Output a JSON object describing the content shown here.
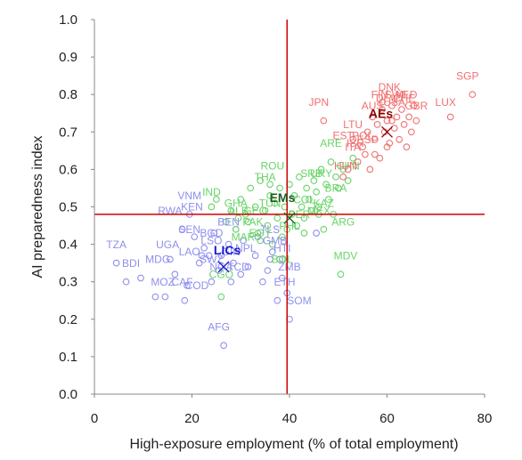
{
  "chart_data": {
    "type": "scatter",
    "title": "",
    "xlabel": "High-exposure employment (% of total employment)",
    "ylabel": "AI preparedness index",
    "xlim": [
      0,
      80
    ],
    "ylim": [
      0,
      1.0
    ],
    "x_ticks": [
      "0",
      "20",
      "40",
      "60",
      "80"
    ],
    "y_ticks": [
      "0.0",
      "0.1",
      "0.2",
      "0.3",
      "0.4",
      "0.5",
      "0.6",
      "0.7",
      "0.8",
      "0.9",
      "1.0"
    ],
    "grid": false,
    "reference_lines": {
      "x": 39.5,
      "y": 0.48,
      "color": "#d00000"
    },
    "series": [
      {
        "group": "LICs",
        "color": "#8f8fee",
        "label_color": "#1a1acc",
        "centroid": {
          "x": 26.5,
          "y": 0.34
        },
        "points": [
          {
            "x": 4.5,
            "y": 0.35
          },
          {
            "x": 6.5,
            "y": 0.3
          },
          {
            "x": 9.5,
            "y": 0.31
          },
          {
            "x": 12.5,
            "y": 0.26
          },
          {
            "x": 14.5,
            "y": 0.26
          },
          {
            "x": 15.5,
            "y": 0.36
          },
          {
            "x": 16.5,
            "y": 0.32
          },
          {
            "x": 18.5,
            "y": 0.25
          },
          {
            "x": 18,
            "y": 0.44
          },
          {
            "x": 19.5,
            "y": 0.48
          },
          {
            "x": 20.5,
            "y": 0.42
          },
          {
            "x": 21.5,
            "y": 0.35
          },
          {
            "x": 22.5,
            "y": 0.39
          },
          {
            "x": 23.5,
            "y": 0.37
          },
          {
            "x": 24,
            "y": 0.3
          },
          {
            "x": 25.5,
            "y": 0.33
          },
          {
            "x": 26,
            "y": 0.37
          },
          {
            "x": 26.5,
            "y": 0.13
          },
          {
            "x": 27.5,
            "y": 0.4
          },
          {
            "x": 28.5,
            "y": 0.35
          },
          {
            "x": 29,
            "y": 0.44
          },
          {
            "x": 30.5,
            "y": 0.41
          },
          {
            "x": 31.5,
            "y": 0.34
          },
          {
            "x": 33,
            "y": 0.37
          },
          {
            "x": 34.5,
            "y": 0.3
          },
          {
            "x": 35.5,
            "y": 0.33
          },
          {
            "x": 36.5,
            "y": 0.38
          },
          {
            "x": 37.5,
            "y": 0.25
          },
          {
            "x": 38.5,
            "y": 0.31
          },
          {
            "x": 39.5,
            "y": 0.27
          },
          {
            "x": 40,
            "y": 0.2
          },
          {
            "x": 38,
            "y": 0.36
          },
          {
            "x": 36,
            "y": 0.36
          },
          {
            "x": 45.5,
            "y": 0.43
          },
          {
            "x": 30,
            "y": 0.32
          },
          {
            "x": 24.5,
            "y": 0.43
          },
          {
            "x": 22,
            "y": 0.37
          },
          {
            "x": 28,
            "y": 0.3
          },
          {
            "x": 33.5,
            "y": 0.42
          },
          {
            "x": 19,
            "y": 0.29
          }
        ],
        "labels": [
          {
            "text": "TZA",
            "x": 4.5,
            "y": 0.39
          },
          {
            "text": "BDI",
            "x": 7.5,
            "y": 0.34
          },
          {
            "text": "MDG",
            "x": 13,
            "y": 0.35
          },
          {
            "text": "MOZ",
            "x": 14,
            "y": 0.29
          },
          {
            "text": "CAF",
            "x": 18,
            "y": 0.29
          },
          {
            "text": "COD",
            "x": 21,
            "y": 0.28
          },
          {
            "text": "UGA",
            "x": 15,
            "y": 0.39
          },
          {
            "text": "SEN",
            "x": 19.5,
            "y": 0.43
          },
          {
            "text": "RWA",
            "x": 15.5,
            "y": 0.48
          },
          {
            "text": "KEN",
            "x": 20,
            "y": 0.49
          },
          {
            "text": "VNM",
            "x": 19.5,
            "y": 0.52
          },
          {
            "text": "LAO",
            "x": 19.5,
            "y": 0.37
          },
          {
            "text": "BGD",
            "x": 24,
            "y": 0.42
          },
          {
            "text": "LSO",
            "x": 24,
            "y": 0.4
          },
          {
            "text": "GIN",
            "x": 28,
            "y": 0.37
          },
          {
            "text": "SWZ",
            "x": 24,
            "y": 0.35
          },
          {
            "text": "NGA",
            "x": 26,
            "y": 0.33
          },
          {
            "text": "AFG",
            "x": 25.5,
            "y": 0.17
          },
          {
            "text": "SOM",
            "x": 42,
            "y": 0.24
          },
          {
            "text": "ETH",
            "x": 39,
            "y": 0.29
          },
          {
            "text": "ZMB",
            "x": 40,
            "y": 0.33
          },
          {
            "text": "HTI",
            "x": 38.5,
            "y": 0.38
          },
          {
            "text": "GMB",
            "x": 37,
            "y": 0.4
          },
          {
            "text": "TLS",
            "x": 36,
            "y": 0.43
          },
          {
            "text": "NPL",
            "x": 31,
            "y": 0.38
          },
          {
            "text": "BEN",
            "x": 27.5,
            "y": 0.45
          },
          {
            "text": "TCD",
            "x": 29.5,
            "y": 0.33
          }
        ]
      },
      {
        "group": "EMs",
        "color": "#68d468",
        "label_color": "#1e5e1e",
        "centroid": {
          "x": 40,
          "y": 0.47
        },
        "points": [
          {
            "x": 24,
            "y": 0.5
          },
          {
            "x": 25,
            "y": 0.52
          },
          {
            "x": 26,
            "y": 0.26
          },
          {
            "x": 27,
            "y": 0.46
          },
          {
            "x": 28,
            "y": 0.49
          },
          {
            "x": 29,
            "y": 0.44
          },
          {
            "x": 30,
            "y": 0.52
          },
          {
            "x": 31,
            "y": 0.48
          },
          {
            "x": 31.5,
            "y": 0.46
          },
          {
            "x": 32,
            "y": 0.55
          },
          {
            "x": 33,
            "y": 0.5
          },
          {
            "x": 33.5,
            "y": 0.43
          },
          {
            "x": 34,
            "y": 0.57
          },
          {
            "x": 35,
            "y": 0.49
          },
          {
            "x": 35.5,
            "y": 0.45
          },
          {
            "x": 36,
            "y": 0.53
          },
          {
            "x": 36.5,
            "y": 0.4
          },
          {
            "x": 37,
            "y": 0.51
          },
          {
            "x": 37.5,
            "y": 0.47
          },
          {
            "x": 38,
            "y": 0.55
          },
          {
            "x": 38.5,
            "y": 0.42
          },
          {
            "x": 39,
            "y": 0.5
          },
          {
            "x": 39.5,
            "y": 0.44
          },
          {
            "x": 40,
            "y": 0.56
          },
          {
            "x": 40.5,
            "y": 0.48
          },
          {
            "x": 41,
            "y": 0.53
          },
          {
            "x": 41.5,
            "y": 0.45
          },
          {
            "x": 42,
            "y": 0.58
          },
          {
            "x": 42.5,
            "y": 0.5
          },
          {
            "x": 43,
            "y": 0.47
          },
          {
            "x": 43.5,
            "y": 0.55
          },
          {
            "x": 44,
            "y": 0.52
          },
          {
            "x": 44.5,
            "y": 0.49
          },
          {
            "x": 45,
            "y": 0.57
          },
          {
            "x": 45.5,
            "y": 0.54
          },
          {
            "x": 46,
            "y": 0.5
          },
          {
            "x": 46.5,
            "y": 0.6
          },
          {
            "x": 47,
            "y": 0.44
          },
          {
            "x": 47.5,
            "y": 0.56
          },
          {
            "x": 48,
            "y": 0.52
          },
          {
            "x": 48.5,
            "y": 0.62
          },
          {
            "x": 49,
            "y": 0.48
          },
          {
            "x": 49.5,
            "y": 0.58
          },
          {
            "x": 50,
            "y": 0.55
          },
          {
            "x": 50.5,
            "y": 0.32
          },
          {
            "x": 51,
            "y": 0.6
          },
          {
            "x": 52,
            "y": 0.57
          },
          {
            "x": 53,
            "y": 0.63
          },
          {
            "x": 34,
            "y": 0.41
          },
          {
            "x": 29.5,
            "y": 0.47
          },
          {
            "x": 38.5,
            "y": 0.36
          },
          {
            "x": 43,
            "y": 0.43
          },
          {
            "x": 46,
            "y": 0.48
          },
          {
            "x": 36,
            "y": 0.56
          }
        ],
        "labels": [
          {
            "text": "IND",
            "x": 24,
            "y": 0.53
          },
          {
            "text": "ALB",
            "x": 29.5,
            "y": 0.48
          },
          {
            "text": "GEO",
            "x": 33,
            "y": 0.48
          },
          {
            "text": "ROU",
            "x": 36.5,
            "y": 0.6
          },
          {
            "text": "THA",
            "x": 35,
            "y": 0.57
          },
          {
            "text": "PAK",
            "x": 32.5,
            "y": 0.45
          },
          {
            "text": "ARE",
            "x": 48.5,
            "y": 0.66
          },
          {
            "text": "CHN",
            "x": 52,
            "y": 0.6
          },
          {
            "text": "URY",
            "x": 46.5,
            "y": 0.58
          },
          {
            "text": "BRA",
            "x": 49.5,
            "y": 0.54
          },
          {
            "text": "ARG",
            "x": 51,
            "y": 0.45
          },
          {
            "text": "MEX",
            "x": 46,
            "y": 0.48
          },
          {
            "text": "MDV",
            "x": 51.5,
            "y": 0.36
          },
          {
            "text": "PHL",
            "x": 40,
            "y": 0.44
          },
          {
            "text": "KAZ",
            "x": 47,
            "y": 0.5
          },
          {
            "text": "COL",
            "x": 43,
            "y": 0.51
          },
          {
            "text": "TUN",
            "x": 36,
            "y": 0.5
          },
          {
            "text": "EGY",
            "x": 34,
            "y": 0.42
          },
          {
            "text": "MAR",
            "x": 30.5,
            "y": 0.41
          },
          {
            "text": "BOL",
            "x": 38.5,
            "y": 0.35
          },
          {
            "text": "CGO",
            "x": 26,
            "y": 0.31
          },
          {
            "text": "GHA",
            "x": 29,
            "y": 0.5
          },
          {
            "text": "PER",
            "x": 42,
            "y": 0.47
          },
          {
            "text": "SRB",
            "x": 44.5,
            "y": 0.58
          }
        ]
      },
      {
        "group": "AEs",
        "color": "#f07070",
        "label_color": "#8b0000",
        "centroid": {
          "x": 60,
          "y": 0.7
        },
        "points": [
          {
            "x": 47,
            "y": 0.73
          },
          {
            "x": 51,
            "y": 0.58
          },
          {
            "x": 52,
            "y": 0.6
          },
          {
            "x": 53,
            "y": 0.68
          },
          {
            "x": 54,
            "y": 0.62
          },
          {
            "x": 55,
            "y": 0.66
          },
          {
            "x": 55.5,
            "y": 0.64
          },
          {
            "x": 56,
            "y": 0.7
          },
          {
            "x": 56.5,
            "y": 0.6
          },
          {
            "x": 57,
            "y": 0.74
          },
          {
            "x": 57.5,
            "y": 0.68
          },
          {
            "x": 58,
            "y": 0.72
          },
          {
            "x": 58.5,
            "y": 0.63
          },
          {
            "x": 59,
            "y": 0.76
          },
          {
            "x": 59.5,
            "y": 0.7
          },
          {
            "x": 60,
            "y": 0.73
          },
          {
            "x": 60.5,
            "y": 0.67
          },
          {
            "x": 61,
            "y": 0.77
          },
          {
            "x": 61.5,
            "y": 0.71
          },
          {
            "x": 62,
            "y": 0.74
          },
          {
            "x": 62.5,
            "y": 0.68
          },
          {
            "x": 63,
            "y": 0.76
          },
          {
            "x": 63.5,
            "y": 0.72
          },
          {
            "x": 64,
            "y": 0.66
          },
          {
            "x": 64.5,
            "y": 0.74
          },
          {
            "x": 65,
            "y": 0.7
          },
          {
            "x": 65.5,
            "y": 0.77
          },
          {
            "x": 66,
            "y": 0.73
          },
          {
            "x": 73,
            "y": 0.74
          },
          {
            "x": 77.5,
            "y": 0.8
          },
          {
            "x": 57.5,
            "y": 0.64
          },
          {
            "x": 60,
            "y": 0.66
          },
          {
            "x": 61,
            "y": 0.73
          },
          {
            "x": 59,
            "y": 0.78
          }
        ],
        "labels": [
          {
            "text": "SGP",
            "x": 76.5,
            "y": 0.84
          },
          {
            "text": "LUX",
            "x": 72,
            "y": 0.77
          },
          {
            "text": "JPN",
            "x": 46,
            "y": 0.77
          },
          {
            "text": "DNK",
            "x": 60.5,
            "y": 0.81
          },
          {
            "text": "FIN",
            "x": 58.5,
            "y": 0.79
          },
          {
            "text": "SWE",
            "x": 62,
            "y": 0.79
          },
          {
            "text": "DEU",
            "x": 60,
            "y": 0.78
          },
          {
            "text": "NLD",
            "x": 64,
            "y": 0.79
          },
          {
            "text": "CHE",
            "x": 63.5,
            "y": 0.78
          },
          {
            "text": "GBR",
            "x": 66,
            "y": 0.76
          },
          {
            "text": "AUS",
            "x": 57,
            "y": 0.76
          },
          {
            "text": "USA",
            "x": 61.5,
            "y": 0.77
          },
          {
            "text": "LTU",
            "x": 53,
            "y": 0.71
          },
          {
            "text": "EST",
            "x": 51,
            "y": 0.68
          },
          {
            "text": "ISR",
            "x": 53.5,
            "y": 0.66
          },
          {
            "text": "ITA",
            "x": 53,
            "y": 0.65
          },
          {
            "text": "ESP",
            "x": 56,
            "y": 0.67
          },
          {
            "text": "HUN",
            "x": 51.5,
            "y": 0.6
          },
          {
            "text": "POL",
            "x": 55,
            "y": 0.68
          }
        ]
      }
    ]
  }
}
